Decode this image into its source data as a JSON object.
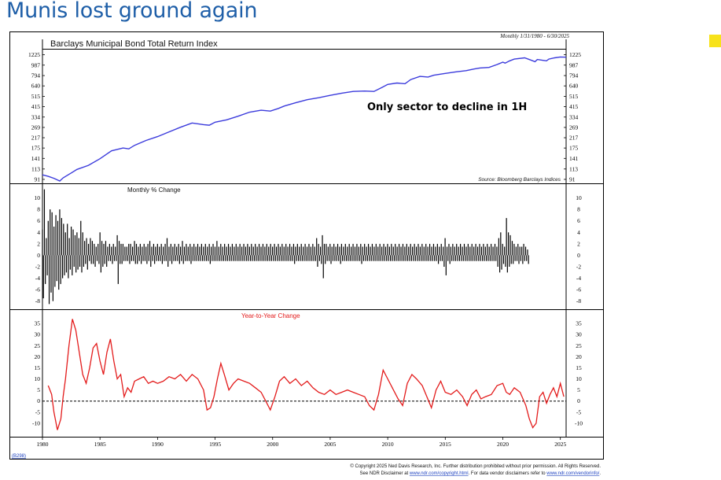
{
  "slide": {
    "title": "Munis lost ground again",
    "accent_color": "#f7e21b",
    "title_color": "#1f5fa8"
  },
  "chart_data": [
    {
      "type": "line",
      "title": "Barclays Municipal Bond Total Return Index",
      "period_note": "Monthly 1/31/1980 - 6/30/2025",
      "annotation": "Only sector to decline in 1H",
      "source": "Source: Bloomberg Barclays Indices",
      "y_scale": "log",
      "ylim": [
        88,
        1300
      ],
      "y_ticks": [
        1225,
        987,
        794,
        640,
        515,
        415,
        334,
        269,
        217,
        175,
        141,
        113,
        91
      ],
      "color": "#3b3bdc",
      "series": [
        {
          "x": [
            1980.0,
            1980.5,
            1981.0,
            1981.5,
            1981.8,
            1982.5,
            1983.0,
            1984.0,
            1985.0,
            1986.0,
            1987.0,
            1987.5,
            1988.0,
            1989.0,
            1990.0,
            1991.0,
            1992.0,
            1993.0,
            1994.0,
            1994.5,
            1995.0,
            1996.0,
            1997.0,
            1998.0,
            1999.0,
            1999.8,
            2000.5,
            2001.0,
            2002.0,
            2003.0,
            2004.0,
            2005.0,
            2006.0,
            2007.0,
            2008.0,
            2008.8,
            2009.5,
            2010.0,
            2010.8,
            2011.5,
            2012.0,
            2012.8,
            2013.5,
            2014.0,
            2015.0,
            2016.0,
            2016.8,
            2017.5,
            2018.0,
            2018.8,
            2019.5,
            2020.0,
            2020.2,
            2020.6,
            2021.0,
            2021.9,
            2022.5,
            2022.8,
            2023.0,
            2023.5,
            2023.8,
            2024.0,
            2024.5,
            2025.0,
            2025.5
          ],
          "values": [
            100,
            97,
            93,
            88,
            94,
            104,
            112,
            122,
            140,
            165,
            175,
            172,
            185,
            205,
            222,
            245,
            270,
            295,
            285,
            282,
            300,
            315,
            340,
            370,
            385,
            378,
            400,
            420,
            450,
            480,
            500,
            525,
            550,
            570,
            575,
            570,
            620,
            660,
            680,
            670,
            730,
            780,
            770,
            800,
            830,
            860,
            880,
            910,
            930,
            940,
            1000,
            1050,
            1030,
            1080,
            1120,
            1150,
            1090,
            1060,
            1110,
            1090,
            1080,
            1120,
            1150,
            1170,
            1165
          ]
        }
      ]
    },
    {
      "type": "bar",
      "title": "Monthly % Change",
      "ylim": [
        -9,
        12
      ],
      "y_ticks": [
        10,
        8,
        6,
        4,
        2,
        0,
        -2,
        -4,
        -6,
        -8
      ],
      "color": "#000000",
      "x_start": 1980.0,
      "x_step": 0.0833,
      "values": [
        4.5,
        -7.5,
        11.5,
        -5.0,
        3.0,
        -3.5,
        6.0,
        -8.5,
        8.0,
        -6.5,
        7.5,
        -8.0,
        5.0,
        -5.5,
        7.0,
        -4.5,
        6.0,
        -6.0,
        8.0,
        -5.0,
        6.5,
        -4.0,
        5.5,
        -3.5,
        4.0,
        -3.0,
        5.5,
        -4.0,
        3.0,
        -2.5,
        5.0,
        -3.5,
        4.5,
        -2.0,
        3.5,
        -3.0,
        4.0,
        -2.5,
        3.0,
        -2.0,
        6.0,
        -3.0,
        4.0,
        -2.0,
        2.5,
        -1.5,
        3.0,
        -2.5,
        2.0,
        -1.0,
        3.0,
        -1.5,
        2.5,
        -1.5,
        2.0,
        -2.0,
        1.5,
        -1.0,
        2.0,
        -1.5,
        4.0,
        -3.0,
        2.5,
        -2.0,
        2.0,
        -1.5,
        2.5,
        -2.0,
        1.5,
        -1.0,
        2.0,
        -1.0,
        1.5,
        -1.5,
        2.0,
        -1.0,
        1.5,
        -1.0,
        3.5,
        -5.0,
        2.5,
        -1.5,
        2.0,
        -1.5,
        2.0,
        -1.0,
        1.5,
        -1.0,
        1.5,
        -1.0,
        2.0,
        -1.5,
        2.0,
        -1.0,
        1.5,
        -1.0,
        2.5,
        -1.5,
        2.0,
        -1.5,
        1.5,
        -1.0,
        2.0,
        -1.5,
        1.5,
        -1.0,
        2.0,
        -1.0,
        1.5,
        -1.5,
        2.0,
        -1.0,
        2.5,
        -2.0,
        1.5,
        -1.0,
        2.0,
        -1.5,
        1.5,
        -1.0,
        2.0,
        -1.0,
        1.5,
        -1.0,
        2.0,
        -1.5,
        1.5,
        -1.0,
        2.0,
        -1.0,
        3.0,
        -2.0,
        1.5,
        -1.0,
        2.0,
        -1.5,
        1.5,
        -1.0,
        2.0,
        -1.0,
        1.5,
        -1.0,
        2.0,
        -1.5,
        1.5,
        -1.0,
        2.5,
        -1.5,
        1.5,
        -1.0,
        2.0,
        -1.0,
        1.5,
        -1.0,
        2.0,
        -1.5,
        1.5,
        -1.0,
        2.0,
        -1.0,
        1.5,
        -1.0,
        2.0,
        -1.0,
        1.5,
        -1.0,
        2.0,
        -1.0,
        1.5,
        -1.0,
        2.0,
        -1.0,
        1.5,
        -1.0,
        2.0,
        -1.5,
        1.5,
        -1.0,
        2.0,
        -1.0,
        1.5,
        -1.0,
        2.5,
        -1.0,
        1.5,
        -1.0,
        2.0,
        -1.0,
        1.5,
        -1.0,
        2.0,
        -1.0,
        1.5,
        -1.0,
        2.0,
        -1.0,
        1.5,
        -1.0,
        2.0,
        -1.0,
        1.5,
        -1.0,
        2.0,
        -1.0,
        1.5,
        -1.0,
        2.0,
        -1.0,
        1.5,
        -1.0,
        2.0,
        -1.0,
        1.5,
        -1.0,
        2.0,
        -1.0,
        1.5,
        -1.0,
        2.0,
        -1.0,
        1.5,
        -1.0,
        2.0,
        -1.0,
        1.5,
        -1.0,
        2.0,
        -1.0,
        1.5,
        -1.0,
        2.0,
        -1.0,
        1.5,
        -1.0,
        2.0,
        -1.0,
        1.5,
        -1.0,
        2.0,
        -1.0,
        1.5,
        -1.0,
        2.0,
        -1.0,
        1.5,
        -1.0,
        2.0,
        -1.0,
        1.5,
        -1.0,
        2.0,
        -1.0,
        1.5,
        -1.0,
        2.0,
        -1.0,
        1.5,
        -1.0,
        2.0,
        -1.0,
        1.5,
        -1.0,
        2.0,
        -1.5,
        1.5,
        -1.0,
        2.0,
        -1.0,
        1.5,
        -1.0,
        2.0,
        -1.0,
        1.5,
        -1.0,
        2.0,
        -1.0,
        1.5,
        -1.0,
        2.0,
        -1.0,
        1.5,
        -1.0,
        2.0,
        -1.0,
        1.5,
        -1.0,
        3.0,
        -2.0,
        2.0,
        -1.0,
        1.5,
        -1.5,
        3.5,
        -4.0,
        2.0,
        -1.5,
        2.0,
        -1.0,
        1.5,
        -1.0,
        2.0,
        -1.5,
        1.5,
        -1.0,
        2.0,
        -1.0,
        1.5,
        -1.0,
        2.0,
        -1.0,
        1.5,
        -1.5,
        2.0,
        -1.0,
        1.5,
        -1.0,
        2.0,
        -1.0,
        1.5,
        -1.0,
        2.0,
        -1.0,
        1.5,
        -1.0,
        2.0,
        -1.0,
        1.5,
        -1.0,
        2.0,
        -1.0,
        1.5,
        -1.0,
        2.0,
        -1.5,
        1.5,
        -1.0,
        2.0,
        -1.0,
        1.5,
        -1.0,
        2.0,
        -1.0,
        1.5,
        -1.0,
        2.0,
        -1.0,
        1.5,
        -1.0,
        2.0,
        -1.0,
        1.5,
        -1.0,
        2.0,
        -1.0,
        1.5,
        -1.0,
        2.0,
        -1.0,
        1.5,
        -1.0,
        2.0,
        -1.0,
        1.5,
        -1.0,
        2.0,
        -1.0,
        1.5,
        -1.0,
        2.0,
        -1.0,
        1.5,
        -1.0,
        2.0,
        -1.0,
        1.5,
        -1.0,
        2.0,
        -1.0,
        1.5,
        -1.0,
        2.0,
        -1.0,
        1.5,
        -1.0,
        2.0,
        -1.0,
        1.5,
        -1.0,
        2.0,
        -1.0,
        1.5,
        -1.0,
        2.0,
        -1.0,
        1.5,
        -1.0,
        2.0,
        -1.0,
        1.5,
        -1.0,
        2.0,
        -1.0,
        1.5,
        -1.0,
        2.0,
        -1.0,
        1.5,
        -1.0,
        2.0,
        -1.0,
        1.5,
        -1.0,
        2.0,
        -1.5,
        1.5,
        -1.0,
        2.0,
        -1.0,
        1.5,
        -2.0,
        3.0,
        -3.5,
        1.5,
        -1.0,
        2.0,
        -1.5,
        1.5,
        -1.0,
        2.0,
        -1.0,
        1.5,
        -1.0,
        2.0,
        -1.0,
        1.5,
        -1.0,
        2.0,
        -1.0,
        1.5,
        -1.0,
        2.0,
        -1.0,
        1.5,
        -1.0,
        2.0,
        -1.0,
        1.5,
        -1.0,
        2.0,
        -1.0,
        1.5,
        -1.0,
        2.0,
        -1.0,
        1.5,
        -1.0,
        2.0,
        -1.0,
        1.5,
        -1.0,
        2.0,
        -1.0,
        1.5,
        -1.0,
        2.0,
        -1.0,
        1.5,
        -1.0,
        2.0,
        -1.0,
        1.5,
        -1.0,
        2.0,
        -1.0,
        1.5,
        -2.0,
        3.0,
        -3.0,
        4.0,
        -2.5,
        2.0,
        -1.5,
        1.5,
        -2.0,
        6.5,
        -3.0,
        4.0,
        -2.0,
        3.5,
        -1.5,
        2.5,
        -1.5,
        2.0,
        -1.0,
        1.5,
        -1.0,
        2.0,
        -1.5,
        1.5,
        -1.0,
        1.5,
        -1.5,
        2.0,
        -1.0,
        1.5,
        -1.0,
        1.0,
        -1.5
      ]
    },
    {
      "type": "line",
      "title": "Year-to-Year Change",
      "ylim": [
        -15,
        40
      ],
      "y_ticks": [
        35,
        30,
        25,
        20,
        15,
        10,
        5,
        0,
        -5,
        -10
      ],
      "reference_line": 0,
      "color": "#e31b1b",
      "x_axis_ticks": [
        1980,
        1985,
        1990,
        1995,
        2000,
        2005,
        2010,
        2015,
        2020,
        2025
      ],
      "series": [
        {
          "x": [
            1980.5,
            1980.8,
            1981.0,
            1981.3,
            1981.6,
            1981.8,
            1982.0,
            1982.3,
            1982.6,
            1982.9,
            1983.2,
            1983.5,
            1983.8,
            1984.1,
            1984.4,
            1984.7,
            1985.0,
            1985.3,
            1985.6,
            1985.9,
            1986.2,
            1986.5,
            1986.8,
            1987.1,
            1987.4,
            1987.7,
            1988.0,
            1988.4,
            1988.8,
            1989.2,
            1989.6,
            1990.0,
            1990.5,
            1991.0,
            1991.5,
            1992.0,
            1992.5,
            1993.0,
            1993.5,
            1994.0,
            1994.3,
            1994.6,
            1994.9,
            1995.2,
            1995.5,
            1995.8,
            1996.2,
            1996.6,
            1997.0,
            1997.5,
            1998.0,
            1998.5,
            1999.0,
            1999.4,
            1999.8,
            2000.2,
            2000.6,
            2001.0,
            2001.5,
            2002.0,
            2002.5,
            2003.0,
            2003.5,
            2004.0,
            2004.5,
            2005.0,
            2005.5,
            2006.0,
            2006.5,
            2007.0,
            2007.5,
            2008.0,
            2008.4,
            2008.8,
            2009.2,
            2009.6,
            2010.0,
            2010.5,
            2010.9,
            2011.3,
            2011.7,
            2012.1,
            2012.5,
            2013.0,
            2013.4,
            2013.8,
            2014.2,
            2014.6,
            2015.0,
            2015.5,
            2016.0,
            2016.5,
            2016.9,
            2017.3,
            2017.7,
            2018.1,
            2018.5,
            2019.0,
            2019.5,
            2020.0,
            2020.3,
            2020.6,
            2021.0,
            2021.5,
            2022.0,
            2022.3,
            2022.6,
            2022.9,
            2023.2,
            2023.5,
            2023.8,
            2024.1,
            2024.4,
            2024.7,
            2025.0,
            2025.3
          ],
          "values": [
            7,
            3,
            -5,
            -13,
            -8,
            2,
            10,
            25,
            37,
            32,
            22,
            12,
            8,
            15,
            24,
            26,
            18,
            12,
            22,
            28,
            18,
            10,
            12,
            2,
            6,
            4,
            9,
            10,
            11,
            8,
            9,
            8,
            9,
            11,
            10,
            12,
            9,
            12,
            10,
            5,
            -4,
            -3,
            2,
            10,
            17,
            12,
            5,
            8,
            10,
            9,
            8,
            6,
            4,
            0,
            -4,
            2,
            9,
            11,
            8,
            10,
            7,
            9,
            6,
            4,
            3,
            5,
            3,
            4,
            5,
            4,
            3,
            2,
            -2,
            -4,
            3,
            14,
            10,
            5,
            1,
            -2,
            8,
            12,
            10,
            7,
            2,
            -3,
            5,
            9,
            4,
            3,
            5,
            2,
            -2,
            3,
            5,
            1,
            2,
            3,
            7,
            8,
            4,
            3,
            6,
            4,
            -2,
            -8,
            -12,
            -10,
            2,
            4,
            -1,
            3,
            6,
            2,
            8,
            2
          ]
        }
      ]
    }
  ],
  "figure": {
    "code_label": "(B298)",
    "copyright_line1": "© Copyright 2025 Ned Davis Research, Inc. Further distribution prohibited without prior permission. All Rights Reserved.",
    "copyright_line2_pre": "See NDR Disclaimer at ",
    "copyright_link1": "www.ndr.com/copyright.html",
    "copyright_line2_mid": ". For data vendor disclaimers refer to ",
    "copyright_link2": "www.ndr.com/vendorinfo/",
    "copyright_line2_post": "."
  }
}
